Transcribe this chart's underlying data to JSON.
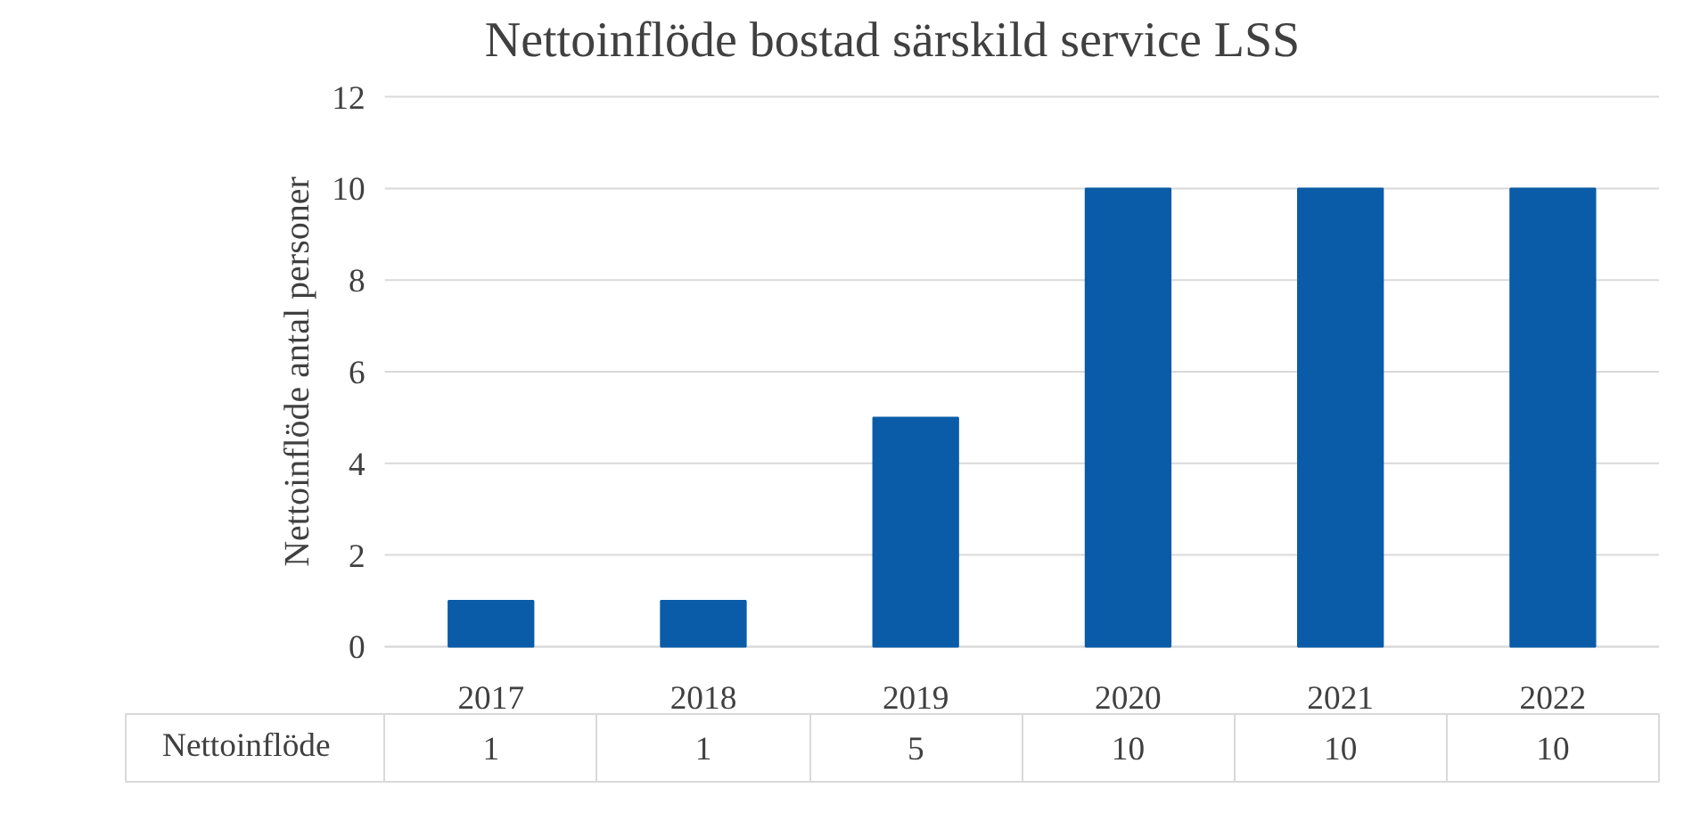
{
  "chart_data": {
    "type": "bar",
    "title": "Nettoinflöde bostad särskild service LSS",
    "ylabel": "Nettoinflöde antal personer",
    "categories": [
      "2017",
      "2018",
      "2019",
      "2020",
      "2021",
      "2022"
    ],
    "series": [
      {
        "name": "Nettoinflöde",
        "color": "#0a5ca8",
        "values": [
          1,
          1,
          5,
          10,
          10,
          10
        ]
      }
    ],
    "ylim": [
      0,
      12
    ],
    "yticks": [
      0,
      2,
      4,
      6,
      8,
      10,
      12
    ],
    "grid": "y",
    "legend": "bottom",
    "data_labels": true
  }
}
